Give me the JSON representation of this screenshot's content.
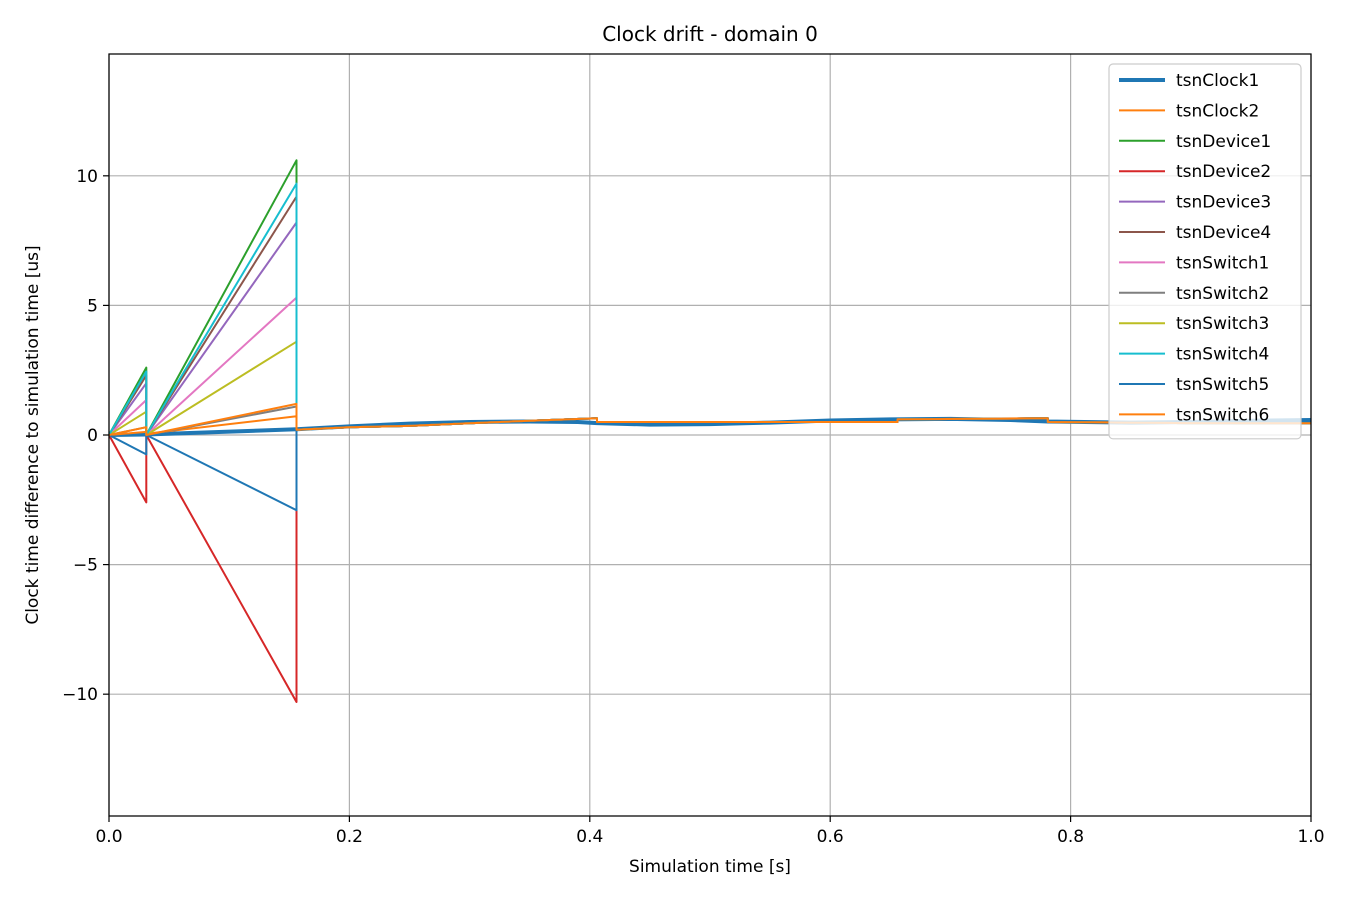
{
  "chart_data": {
    "type": "line",
    "title": "Clock drift - domain 0",
    "xlabel": "Simulation time [s]",
    "ylabel": "Clock time difference to simulation time [us]",
    "xlim": [
      0,
      1
    ],
    "ylim": [
      -14.7,
      14.7
    ],
    "xticks": [
      0,
      0.2,
      0.4,
      0.6,
      0.8,
      1
    ],
    "xtick_labels": [
      "0.0",
      "0.2",
      "0.4",
      "0.6",
      "0.8",
      "1.0"
    ],
    "yticks": [
      -10,
      -5,
      0,
      5,
      10
    ],
    "ytick_labels": [
      "−10",
      "−5",
      "0",
      "5",
      "10"
    ],
    "grid": true,
    "legend_position": "top-right",
    "series": [
      {
        "name": "tsnClock1",
        "color": "#1f77b4",
        "width": 4,
        "points": [
          [
            0,
            0
          ],
          [
            0.031,
            0.02
          ],
          [
            0.156,
            0.22
          ],
          [
            0.2,
            0.33
          ],
          [
            0.25,
            0.44
          ],
          [
            0.3,
            0.5
          ],
          [
            0.35,
            0.52
          ],
          [
            0.39,
            0.5
          ],
          [
            0.406,
            0.46
          ],
          [
            0.45,
            0.4
          ],
          [
            0.5,
            0.42
          ],
          [
            0.55,
            0.48
          ],
          [
            0.6,
            0.56
          ],
          [
            0.65,
            0.6
          ],
          [
            0.7,
            0.62
          ],
          [
            0.75,
            0.58
          ],
          [
            0.781,
            0.52
          ],
          [
            0.85,
            0.48
          ],
          [
            0.9,
            0.5
          ],
          [
            0.95,
            0.55
          ],
          [
            1,
            0.58
          ]
        ]
      },
      {
        "name": "tsnClock2",
        "color": "#ff7f0e",
        "width": 2,
        "points": [
          [
            0,
            0
          ],
          [
            0.031,
            0.12
          ],
          [
            0.031,
            0.05
          ],
          [
            0.156,
            0.72
          ],
          [
            0.156,
            0.2
          ],
          [
            0.2,
            0.3
          ],
          [
            0.25,
            0.35
          ],
          [
            0.3,
            0.45
          ],
          [
            0.35,
            0.55
          ],
          [
            0.406,
            0.65
          ],
          [
            0.406,
            0.5
          ],
          [
            0.45,
            0.5
          ],
          [
            0.5,
            0.5
          ],
          [
            0.55,
            0.5
          ],
          [
            0.656,
            0.5
          ],
          [
            0.656,
            0.6
          ],
          [
            0.7,
            0.62
          ],
          [
            0.781,
            0.65
          ],
          [
            0.781,
            0.5
          ],
          [
            0.85,
            0.48
          ],
          [
            0.9,
            0.46
          ],
          [
            1,
            0.45
          ]
        ]
      },
      {
        "name": "tsnDevice1",
        "color": "#2ca02c",
        "width": 2,
        "points": [
          [
            0,
            0
          ],
          [
            0.031,
            2.6
          ],
          [
            0.031,
            0.0
          ],
          [
            0.156,
            10.6
          ],
          [
            0.156,
            0.2
          ],
          [
            0.2,
            0.3
          ],
          [
            0.25,
            0.35
          ],
          [
            0.3,
            0.45
          ],
          [
            0.35,
            0.55
          ],
          [
            0.406,
            0.65
          ],
          [
            0.406,
            0.5
          ],
          [
            0.45,
            0.5
          ],
          [
            0.5,
            0.5
          ],
          [
            0.656,
            0.5
          ],
          [
            0.656,
            0.6
          ],
          [
            0.781,
            0.65
          ],
          [
            0.781,
            0.5
          ],
          [
            0.9,
            0.46
          ],
          [
            1,
            0.45
          ]
        ]
      },
      {
        "name": "tsnDevice2",
        "color": "#d62728",
        "width": 2,
        "points": [
          [
            0,
            0
          ],
          [
            0.031,
            -2.6
          ],
          [
            0.031,
            0.0
          ],
          [
            0.156,
            -10.3
          ],
          [
            0.156,
            0.2
          ],
          [
            0.2,
            0.3
          ],
          [
            0.25,
            0.35
          ],
          [
            0.3,
            0.45
          ],
          [
            0.35,
            0.55
          ],
          [
            0.406,
            0.65
          ],
          [
            0.406,
            0.5
          ],
          [
            0.45,
            0.5
          ],
          [
            0.5,
            0.5
          ],
          [
            0.656,
            0.5
          ],
          [
            0.656,
            0.6
          ],
          [
            0.781,
            0.65
          ],
          [
            0.781,
            0.5
          ],
          [
            0.9,
            0.46
          ],
          [
            1,
            0.45
          ]
        ]
      },
      {
        "name": "tsnDevice3",
        "color": "#9467bd",
        "width": 2,
        "points": [
          [
            0,
            0
          ],
          [
            0.031,
            2.0
          ],
          [
            0.031,
            0.0
          ],
          [
            0.156,
            8.2
          ],
          [
            0.156,
            0.2
          ],
          [
            0.2,
            0.3
          ],
          [
            0.25,
            0.35
          ],
          [
            0.3,
            0.45
          ],
          [
            0.35,
            0.55
          ],
          [
            0.406,
            0.65
          ],
          [
            0.406,
            0.5
          ],
          [
            0.45,
            0.5
          ],
          [
            0.5,
            0.5
          ],
          [
            0.656,
            0.5
          ],
          [
            0.656,
            0.6
          ],
          [
            0.781,
            0.65
          ],
          [
            0.781,
            0.5
          ],
          [
            0.9,
            0.46
          ],
          [
            1,
            0.45
          ]
        ]
      },
      {
        "name": "tsnDevice4",
        "color": "#8c564b",
        "width": 2,
        "points": [
          [
            0,
            0
          ],
          [
            0.031,
            2.3
          ],
          [
            0.031,
            0.0
          ],
          [
            0.156,
            9.2
          ],
          [
            0.156,
            0.2
          ],
          [
            0.2,
            0.3
          ],
          [
            0.25,
            0.35
          ],
          [
            0.3,
            0.45
          ],
          [
            0.35,
            0.55
          ],
          [
            0.406,
            0.65
          ],
          [
            0.406,
            0.5
          ],
          [
            0.45,
            0.5
          ],
          [
            0.5,
            0.5
          ],
          [
            0.656,
            0.5
          ],
          [
            0.656,
            0.6
          ],
          [
            0.781,
            0.65
          ],
          [
            0.781,
            0.5
          ],
          [
            0.9,
            0.46
          ],
          [
            1,
            0.45
          ]
        ]
      },
      {
        "name": "tsnSwitch1",
        "color": "#e377c2",
        "width": 2,
        "points": [
          [
            0,
            0
          ],
          [
            0.031,
            1.35
          ],
          [
            0.031,
            0.0
          ],
          [
            0.156,
            5.3
          ],
          [
            0.156,
            0.2
          ],
          [
            0.2,
            0.3
          ],
          [
            0.25,
            0.35
          ],
          [
            0.3,
            0.45
          ],
          [
            0.35,
            0.55
          ],
          [
            0.406,
            0.65
          ],
          [
            0.406,
            0.5
          ],
          [
            0.45,
            0.5
          ],
          [
            0.5,
            0.5
          ],
          [
            0.656,
            0.5
          ],
          [
            0.656,
            0.6
          ],
          [
            0.781,
            0.65
          ],
          [
            0.781,
            0.5
          ],
          [
            0.9,
            0.46
          ],
          [
            1,
            0.45
          ]
        ]
      },
      {
        "name": "tsnSwitch2",
        "color": "#7f7f7f",
        "width": 2,
        "points": [
          [
            0,
            0
          ],
          [
            0.031,
            0.3
          ],
          [
            0.031,
            0.0
          ],
          [
            0.156,
            1.1
          ],
          [
            0.156,
            0.2
          ],
          [
            0.2,
            0.3
          ],
          [
            0.25,
            0.35
          ],
          [
            0.3,
            0.45
          ],
          [
            0.35,
            0.55
          ],
          [
            0.406,
            0.65
          ],
          [
            0.406,
            0.5
          ],
          [
            0.45,
            0.5
          ],
          [
            0.5,
            0.5
          ],
          [
            0.656,
            0.5
          ],
          [
            0.656,
            0.6
          ],
          [
            0.781,
            0.65
          ],
          [
            0.781,
            0.5
          ],
          [
            0.9,
            0.46
          ],
          [
            1,
            0.45
          ]
        ]
      },
      {
        "name": "tsnSwitch3",
        "color": "#bcbd22",
        "width": 2,
        "points": [
          [
            0,
            0
          ],
          [
            0.031,
            0.9
          ],
          [
            0.031,
            0.0
          ],
          [
            0.156,
            3.6
          ],
          [
            0.156,
            0.2
          ],
          [
            0.2,
            0.3
          ],
          [
            0.25,
            0.35
          ],
          [
            0.3,
            0.45
          ],
          [
            0.35,
            0.55
          ],
          [
            0.406,
            0.65
          ],
          [
            0.406,
            0.5
          ],
          [
            0.45,
            0.5
          ],
          [
            0.5,
            0.5
          ],
          [
            0.656,
            0.5
          ],
          [
            0.656,
            0.6
          ],
          [
            0.781,
            0.65
          ],
          [
            0.781,
            0.5
          ],
          [
            0.9,
            0.46
          ],
          [
            1,
            0.45
          ]
        ]
      },
      {
        "name": "tsnSwitch4",
        "color": "#17becf",
        "width": 2,
        "points": [
          [
            0,
            0
          ],
          [
            0.031,
            2.45
          ],
          [
            0.031,
            0.0
          ],
          [
            0.156,
            9.7
          ],
          [
            0.156,
            0.2
          ],
          [
            0.2,
            0.3
          ],
          [
            0.25,
            0.35
          ],
          [
            0.3,
            0.45
          ],
          [
            0.35,
            0.55
          ],
          [
            0.406,
            0.65
          ],
          [
            0.406,
            0.5
          ],
          [
            0.45,
            0.5
          ],
          [
            0.5,
            0.5
          ],
          [
            0.656,
            0.5
          ],
          [
            0.656,
            0.6
          ],
          [
            0.781,
            0.65
          ],
          [
            0.781,
            0.5
          ],
          [
            0.9,
            0.46
          ],
          [
            1,
            0.45
          ]
        ]
      },
      {
        "name": "tsnSwitch5",
        "color": "#1f77b4",
        "width": 2,
        "points": [
          [
            0,
            0
          ],
          [
            0.031,
            -0.75
          ],
          [
            0.031,
            0.0
          ],
          [
            0.156,
            -2.9
          ],
          [
            0.156,
            0.2
          ],
          [
            0.2,
            0.3
          ],
          [
            0.25,
            0.35
          ],
          [
            0.3,
            0.45
          ],
          [
            0.35,
            0.55
          ],
          [
            0.406,
            0.65
          ],
          [
            0.406,
            0.5
          ],
          [
            0.45,
            0.5
          ],
          [
            0.5,
            0.5
          ],
          [
            0.656,
            0.5
          ],
          [
            0.656,
            0.6
          ],
          [
            0.781,
            0.65
          ],
          [
            0.781,
            0.5
          ],
          [
            0.9,
            0.46
          ],
          [
            1,
            0.45
          ]
        ]
      },
      {
        "name": "tsnSwitch6",
        "color": "#ff7f0e",
        "width": 2,
        "points": [
          [
            0,
            0
          ],
          [
            0.031,
            0.3
          ],
          [
            0.031,
            0.0
          ],
          [
            0.156,
            1.2
          ],
          [
            0.156,
            0.2
          ],
          [
            0.2,
            0.3
          ],
          [
            0.25,
            0.35
          ],
          [
            0.3,
            0.45
          ],
          [
            0.35,
            0.55
          ],
          [
            0.406,
            0.65
          ],
          [
            0.406,
            0.5
          ],
          [
            0.45,
            0.5
          ],
          [
            0.5,
            0.5
          ],
          [
            0.656,
            0.5
          ],
          [
            0.656,
            0.6
          ],
          [
            0.781,
            0.65
          ],
          [
            0.781,
            0.5
          ],
          [
            0.9,
            0.46
          ],
          [
            1,
            0.45
          ]
        ]
      }
    ]
  }
}
